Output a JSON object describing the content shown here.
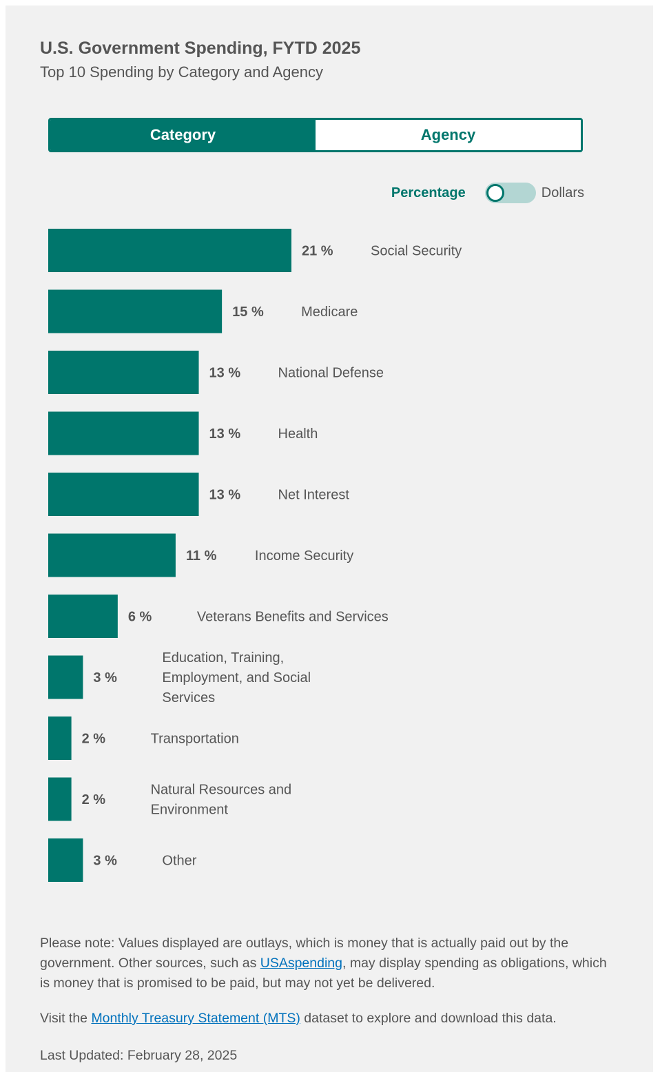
{
  "header": {
    "title": "U.S. Government Spending, FYTD 2025",
    "subtitle": "Top 10 Spending by Category and Agency"
  },
  "tabs": [
    {
      "label": "Category",
      "active": true
    },
    {
      "label": "Agency",
      "active": false
    }
  ],
  "toggle": {
    "left_label": "Percentage",
    "right_label": "Dollars",
    "selected": "Percentage"
  },
  "colors": {
    "accent": "#00766c",
    "toggle_track": "#b3d6d3",
    "link": "#0071bc"
  },
  "chart_data": {
    "type": "bar",
    "orientation": "horizontal",
    "unit": "%",
    "xlim": [
      0,
      21
    ],
    "categories": [
      "Social Security",
      "Medicare",
      "National Defense",
      "Health",
      "Net Interest",
      "Income Security",
      "Veterans Benefits and Services",
      "Education, Training, Employment, and Social Services",
      "Transportation",
      "Natural Resources and Environment",
      "Other"
    ],
    "values": [
      21,
      15,
      13,
      13,
      13,
      11,
      6,
      3,
      2,
      2,
      3
    ],
    "value_labels": [
      "21 %",
      "15 %",
      "13 %",
      "13 %",
      "13 %",
      "11 %",
      "6 %",
      "3 %",
      "2 %",
      "2 %",
      "3 %"
    ],
    "label_lines": [
      [
        "Social Security"
      ],
      [
        "Medicare"
      ],
      [
        "National Defense"
      ],
      [
        "Health"
      ],
      [
        "Net Interest"
      ],
      [
        "Income Security"
      ],
      [
        "Veterans Benefits and Services"
      ],
      [
        "Education, Training,",
        "Employment, and Social",
        "Services"
      ],
      [
        "Transportation"
      ],
      [
        "Natural Resources and",
        "Environment"
      ],
      [
        "Other"
      ]
    ]
  },
  "footer": {
    "note_prefix": "Please note: Values displayed are outlays, which is money that is actually paid out by the government. Other sources, such as ",
    "note_link": "USAspending",
    "note_suffix": ", may display spending as obligations, which is money that is promised to be paid, but may not yet be delivered.",
    "visit_prefix": "Visit the ",
    "visit_link": "Monthly Treasury Statement (MTS)",
    "visit_suffix": " dataset to explore and download this data.",
    "last_updated": "Last Updated: February 28, 2025"
  }
}
